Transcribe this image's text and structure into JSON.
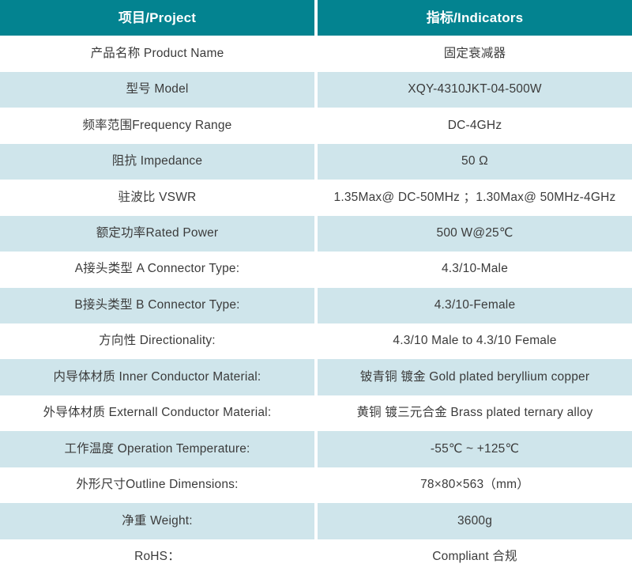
{
  "table": {
    "header": {
      "project": "项目/Project",
      "indicators": "指标/Indicators"
    },
    "rows": [
      {
        "project": "产品名称 Product Name",
        "indicator": "固定衰减器"
      },
      {
        "project": "型号 Model",
        "indicator": "XQY-4310JKT-04-500W"
      },
      {
        "project": "频率范围Frequency Range",
        "indicator": "DC-4GHz"
      },
      {
        "project": "阻抗 Impedance",
        "indicator": "50 Ω"
      },
      {
        "project": "驻波比 VSWR",
        "indicator": "1.35Max@ DC-50MHz ；1.30Max@ 50MHz-4GHz"
      },
      {
        "project": "额定功率Rated Power",
        "indicator": "500 W@25℃"
      },
      {
        "project": "A接头类型 A Connector Type:",
        "indicator": "4.3/10-Male"
      },
      {
        "project": "B接头类型 B Connector Type:",
        "indicator": "4.3/10-Female"
      },
      {
        "project": "方向性 Directionality:",
        "indicator": "4.3/10 Male to 4.3/10 Female"
      },
      {
        "project": "内导体材质 Inner Conductor Material:",
        "indicator": "铍青铜 镀金 Gold plated beryllium copper"
      },
      {
        "project": "外导体材质 Externall Conductor Material:",
        "indicator": "黄铜 镀三元合金 Brass plated ternary alloy"
      },
      {
        "project": "工作温度 Operation Temperature:",
        "indicator": "-55℃ ~ +125℃"
      },
      {
        "project": "外形尺寸Outline Dimensions:",
        "indicator": "78×80×563（mm）"
      },
      {
        "project": "净重 Weight:",
        "indicator": "3600g"
      },
      {
        "project": "RoHS：",
        "indicator": "Compliant 合规"
      }
    ],
    "colors": {
      "header_bg": "#038390",
      "header_text": "#ffffff",
      "stripe_bg": "#cfe5eb",
      "row_bg": "#ffffff",
      "body_text": "#3b3b3b"
    }
  }
}
